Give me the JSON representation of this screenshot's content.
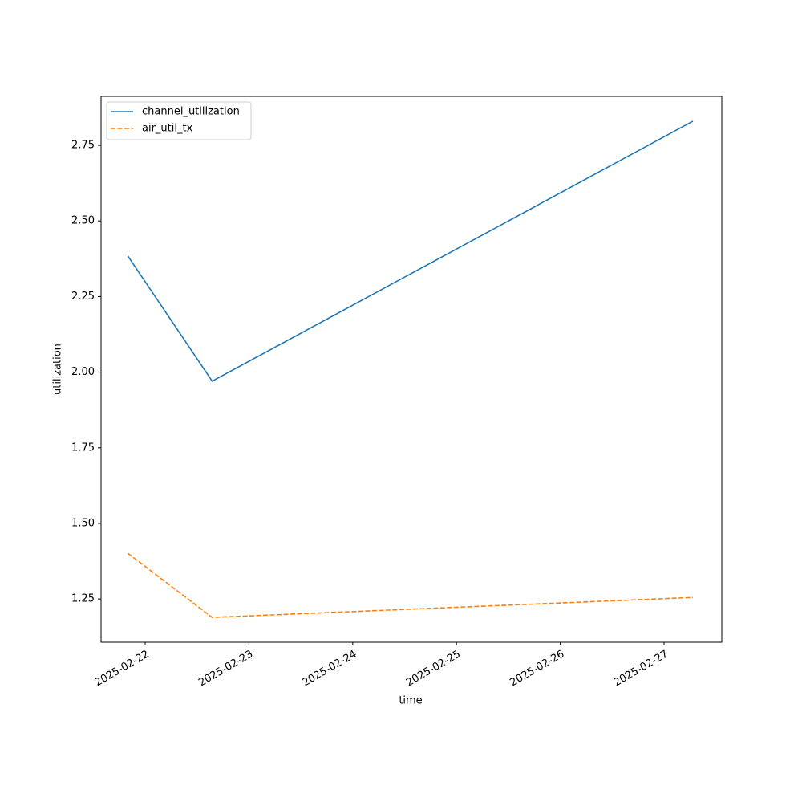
{
  "chart_data": {
    "type": "line",
    "x_label": "time",
    "y_label": "utilization",
    "x": [
      "2025-02-21T20:00",
      "2025-02-22T15:30",
      "2025-02-27T06:40"
    ],
    "series": [
      {
        "name": "channel_utilization",
        "color": "#1f77b4",
        "linestyle": "solid",
        "values": [
          2.384,
          1.97,
          2.83
        ]
      },
      {
        "name": "air_util_tx",
        "color": "#ff7f0e",
        "linestyle": "dashed",
        "values": [
          1.401,
          1.189,
          1.255
        ]
      }
    ],
    "xlim": [
      "2025-02-21T13:48",
      "2025-02-27T13:21"
    ],
    "xticks": [
      "2025-02-22",
      "2025-02-23",
      "2025-02-24",
      "2025-02-25",
      "2025-02-26",
      "2025-02-27"
    ],
    "ylim": [
      1.107,
      2.912
    ],
    "yticks": [
      1.25,
      {
        "value": 1.5,
        "label": "1.50"
      },
      1.75,
      {
        "value": 2,
        "label": "2.00"
      },
      2.25,
      {
        "value": 2.5,
        "label": "2.50"
      },
      2.75
    ],
    "legend": "upper left",
    "grid": false
  }
}
